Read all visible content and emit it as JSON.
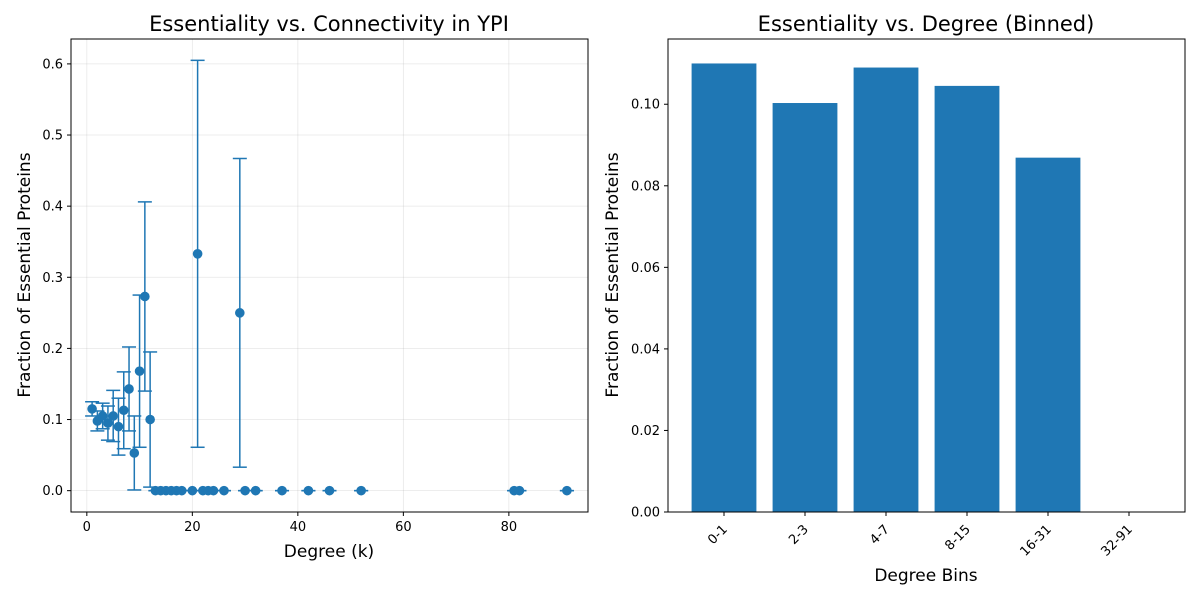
{
  "chart_data": [
    {
      "type": "scatter",
      "title": "Essentiality vs. Connectivity in YPI",
      "xlabel": "Degree (k)",
      "ylabel": "Fraction of Essential Proteins",
      "xlim": [
        -3,
        95
      ],
      "ylim": [
        -0.03,
        0.635
      ],
      "xticks": [
        0,
        20,
        40,
        60,
        80
      ],
      "yticks": [
        0.0,
        0.1,
        0.2,
        0.3,
        0.4,
        0.5,
        0.6
      ],
      "grid": true,
      "color": "#1f77b4",
      "points": [
        {
          "x": 1,
          "y": 0.115,
          "err": 0.01
        },
        {
          "x": 2,
          "y": 0.098,
          "err": 0.014
        },
        {
          "x": 3,
          "y": 0.105,
          "err": 0.018
        },
        {
          "x": 4,
          "y": 0.095,
          "err": 0.024
        },
        {
          "x": 5,
          "y": 0.105,
          "err": 0.036
        },
        {
          "x": 6,
          "y": 0.09,
          "err": 0.04
        },
        {
          "x": 7,
          "y": 0.113,
          "err": 0.054
        },
        {
          "x": 8,
          "y": 0.143,
          "err": 0.059
        },
        {
          "x": 9,
          "y": 0.053,
          "err": 0.052
        },
        {
          "x": 10,
          "y": 0.168,
          "err": 0.107
        },
        {
          "x": 11,
          "y": 0.273,
          "err": 0.133
        },
        {
          "x": 12,
          "y": 0.1,
          "err": 0.095
        },
        {
          "x": 13,
          "y": 0.0,
          "err": 0
        },
        {
          "x": 14,
          "y": 0.0,
          "err": 0
        },
        {
          "x": 15,
          "y": 0.0,
          "err": 0
        },
        {
          "x": 16,
          "y": 0.0,
          "err": 0
        },
        {
          "x": 17,
          "y": 0.0,
          "err": 0
        },
        {
          "x": 18,
          "y": 0.0,
          "err": 0
        },
        {
          "x": 20,
          "y": 0.0,
          "err": 0
        },
        {
          "x": 21,
          "y": 0.333,
          "err": 0.272
        },
        {
          "x": 22,
          "y": 0.0,
          "err": 0
        },
        {
          "x": 23,
          "y": 0.0,
          "err": 0
        },
        {
          "x": 24,
          "y": 0.0,
          "err": 0
        },
        {
          "x": 26,
          "y": 0.0,
          "err": 0
        },
        {
          "x": 29,
          "y": 0.25,
          "err": 0.217
        },
        {
          "x": 30,
          "y": 0.0,
          "err": 0
        },
        {
          "x": 32,
          "y": 0.0,
          "err": 0
        },
        {
          "x": 37,
          "y": 0.0,
          "err": 0
        },
        {
          "x": 42,
          "y": 0.0,
          "err": 0
        },
        {
          "x": 46,
          "y": 0.0,
          "err": 0
        },
        {
          "x": 52,
          "y": 0.0,
          "err": 0
        },
        {
          "x": 81,
          "y": 0.0,
          "err": 0
        },
        {
          "x": 82,
          "y": 0.0,
          "err": 0
        },
        {
          "x": 91,
          "y": 0.0,
          "err": 0
        }
      ]
    },
    {
      "type": "bar",
      "title": "Essentiality vs. Degree (Binned)",
      "xlabel": "Degree Bins",
      "ylabel": "Fraction of Essential Proteins",
      "categories": [
        "0-1",
        "2-3",
        "4-7",
        "8-15",
        "16-31",
        "32-91"
      ],
      "values": [
        0.11,
        0.1003,
        0.109,
        0.1045,
        0.0869,
        0.0
      ],
      "ylim": [
        0,
        0.116
      ],
      "yticks": [
        0.0,
        0.02,
        0.04,
        0.06,
        0.08,
        0.1
      ],
      "grid": false,
      "color": "#1f77b4"
    }
  ]
}
